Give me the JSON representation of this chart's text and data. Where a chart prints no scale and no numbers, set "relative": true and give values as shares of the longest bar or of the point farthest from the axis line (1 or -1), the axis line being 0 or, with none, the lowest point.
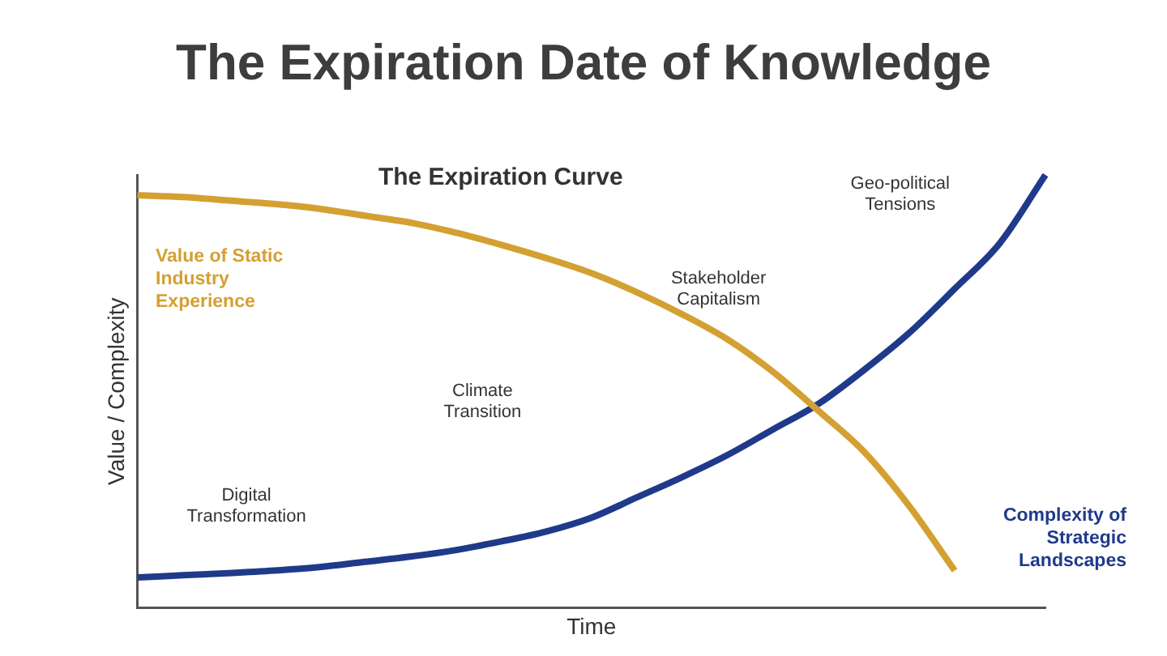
{
  "chart_data": {
    "type": "line",
    "title": "The Expiration Date of Knowledge",
    "subtitle": "The Expiration Curve",
    "xlabel": "Time",
    "ylabel": "Value / Complexity",
    "relative": true,
    "legend": false,
    "grid": false,
    "categories": [
      null,
      null,
      null,
      null,
      null,
      null,
      null,
      null,
      null,
      null,
      null,
      null,
      null,
      null,
      null,
      null,
      null,
      null,
      null,
      null,
      null
    ],
    "series": [
      {
        "name": "Value of Static Industry Experience",
        "color": "#d4a032",
        "values": [
          0.953,
          0.949,
          0.941,
          0.933,
          0.922,
          0.906,
          0.89,
          0.867,
          0.839,
          0.808,
          0.773,
          0.729,
          0.678,
          0.62,
          0.545,
          0.455,
          0.361,
          0.235,
          0.086,
          null,
          null
        ]
      },
      {
        "name": "Complexity of Strategic Landscapes",
        "color": "#1f3a8a",
        "values": [
          0.07,
          0.075,
          0.08,
          0.086,
          0.094,
          0.106,
          0.118,
          0.133,
          0.153,
          0.176,
          0.208,
          0.255,
          0.302,
          0.353,
          0.412,
          0.471,
          0.549,
          0.635,
          0.737,
          0.843,
          1
        ]
      }
    ],
    "annotations": [
      "Digital Transformation",
      "Climate Transition",
      "Stakeholder Capitalism",
      "Geo-political Tensions"
    ]
  }
}
